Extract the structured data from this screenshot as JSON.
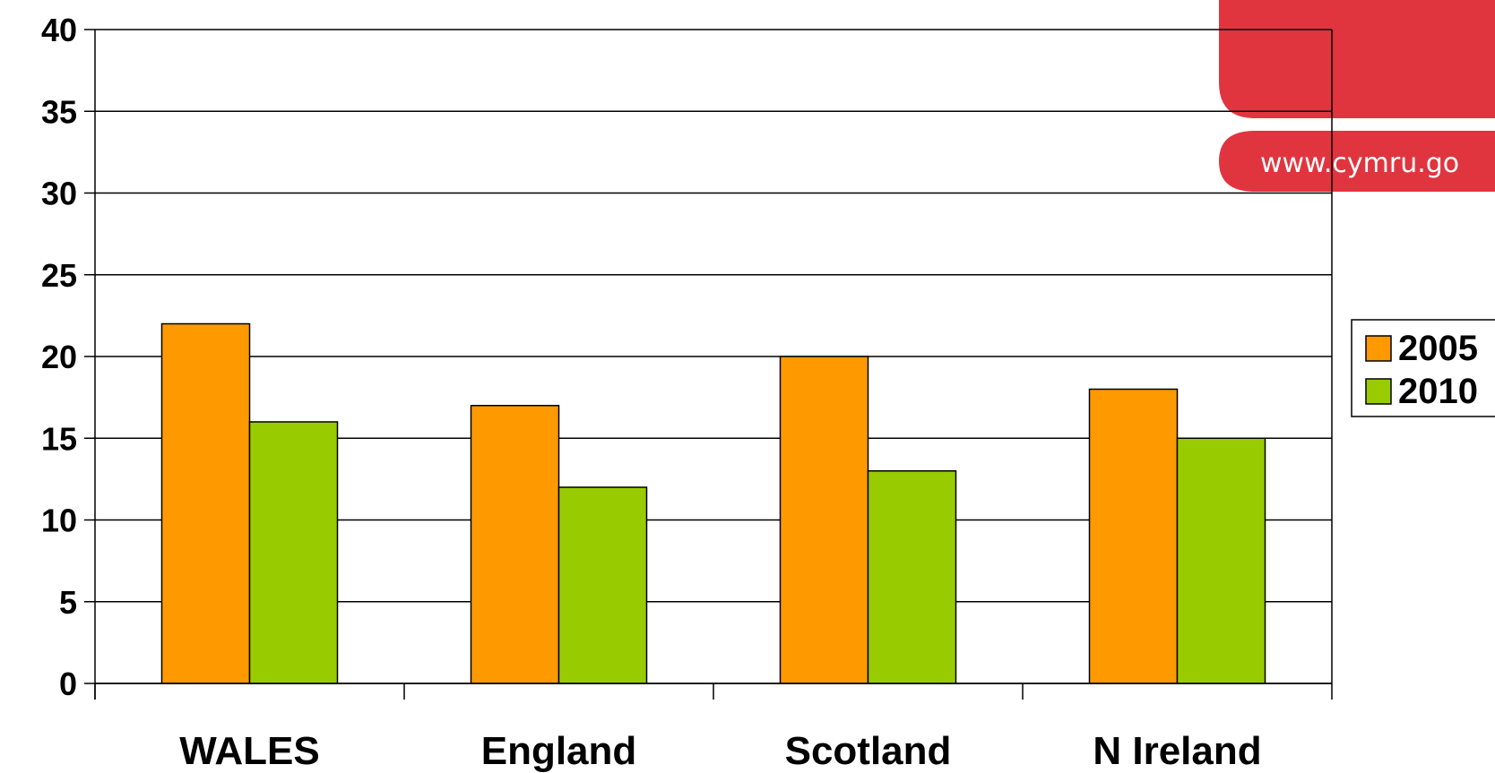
{
  "branding": {
    "url_text": "www.cymru.go",
    "colors": {
      "brand_red": "#E0353F",
      "url_text": "#ffffff"
    }
  },
  "colors": {
    "series_2005": "#FF9900",
    "series_2010": "#99CC00",
    "bar_stroke": "#000000",
    "grid": "#000000",
    "text": "#000000"
  },
  "chart_data": {
    "type": "bar",
    "title": "",
    "xlabel": "",
    "ylabel": "",
    "categories": [
      "WALES",
      "England",
      "Scotland",
      "N Ireland"
    ],
    "series": [
      {
        "name": "2005",
        "values": [
          22,
          17,
          20,
          18
        ]
      },
      {
        "name": "2010",
        "values": [
          16,
          12,
          13,
          15
        ]
      }
    ],
    "ylim": [
      0,
      40
    ],
    "yticks": [
      0,
      5,
      10,
      15,
      20,
      25,
      30,
      35,
      40
    ],
    "grid": true,
    "legend": "right"
  }
}
